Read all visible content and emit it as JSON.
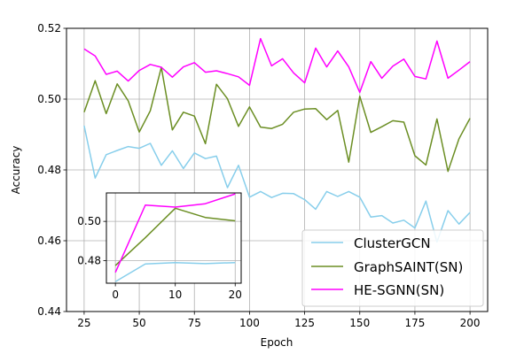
{
  "chart_data": [
    {
      "type": "line",
      "xlabel": "Epoch",
      "ylabel": "Accuracy",
      "xlim": [
        17,
        208
      ],
      "ylim": [
        0.44,
        0.52
      ],
      "xticks": [
        25,
        50,
        75,
        100,
        125,
        150,
        175,
        200
      ],
      "xtick_labels": [
        "25",
        "50",
        "75",
        "100",
        "125",
        "150",
        "175",
        "200"
      ],
      "yticks": [
        0.44,
        0.46,
        0.48,
        0.5,
        0.52
      ],
      "ytick_labels": [
        "0.44",
        "0.46",
        "0.48",
        "0.50",
        "0.52"
      ],
      "grid": true,
      "legend_position": "lower-right",
      "x": [
        25,
        30,
        35,
        40,
        45,
        50,
        55,
        60,
        65,
        70,
        75,
        80,
        85,
        90,
        95,
        100,
        105,
        110,
        115,
        120,
        125,
        130,
        135,
        140,
        145,
        150,
        155,
        160,
        165,
        170,
        175,
        180,
        185,
        190,
        195,
        200
      ],
      "series": [
        {
          "name": "ClusterGCN",
          "color": "#87ceeb",
          "values": [
            0.4925,
            0.4777,
            0.4843,
            0.4855,
            0.4866,
            0.4861,
            0.4875,
            0.4813,
            0.4854,
            0.4804,
            0.4848,
            0.4832,
            0.4839,
            0.475,
            0.4813,
            0.4723,
            0.4739,
            0.4722,
            0.4734,
            0.4733,
            0.4716,
            0.4689,
            0.4739,
            0.4725,
            0.4739,
            0.4723,
            0.4667,
            0.4671,
            0.465,
            0.4658,
            0.4636,
            0.4712,
            0.4596,
            0.4685,
            0.4647,
            0.468
          ]
        },
        {
          "name": "GraphSAINT(SN)",
          "color": "#6b8e23",
          "values": [
            0.4963,
            0.5052,
            0.4959,
            0.5043,
            0.4995,
            0.4907,
            0.4967,
            0.509,
            0.4913,
            0.4963,
            0.4952,
            0.4874,
            0.5042,
            0.5001,
            0.4923,
            0.4978,
            0.4921,
            0.4917,
            0.4929,
            0.4963,
            0.4972,
            0.4973,
            0.4942,
            0.4968,
            0.4822,
            0.5008,
            0.4906,
            0.4922,
            0.4939,
            0.4935,
            0.484,
            0.4814,
            0.4944,
            0.4796,
            0.4888,
            0.4946
          ]
        },
        {
          "name": "HE-SGNN(SN)",
          "color": "#ff00ff",
          "values": [
            0.5142,
            0.5122,
            0.507,
            0.5079,
            0.5051,
            0.5081,
            0.5098,
            0.509,
            0.5062,
            0.5091,
            0.5103,
            0.5076,
            0.508,
            0.5072,
            0.5063,
            0.5039,
            0.5171,
            0.5094,
            0.5114,
            0.5074,
            0.5046,
            0.5144,
            0.5091,
            0.5136,
            0.5091,
            0.5019,
            0.5106,
            0.5059,
            0.5093,
            0.5113,
            0.5064,
            0.5057,
            0.5164,
            0.5059,
            0.5082,
            0.5106
          ]
        }
      ]
    },
    {
      "type": "line",
      "xlabel": "",
      "ylabel": "",
      "xlim": [
        -1.5,
        21
      ],
      "ylim": [
        0.4685,
        0.5145
      ],
      "xticks": [
        0,
        10,
        20
      ],
      "xtick_labels": [
        "0",
        "10",
        "20"
      ],
      "yticks": [
        0.48,
        0.5
      ],
      "ytick_labels": [
        "0.48",
        "0.50"
      ],
      "grid": true,
      "x": [
        0,
        5,
        10,
        15,
        20
      ],
      "series": [
        {
          "name": "ClusterGCN",
          "color": "#87ceeb",
          "values": [
            0.4693,
            0.4783,
            0.479,
            0.4785,
            0.479
          ]
        },
        {
          "name": "GraphSAINT(SN)",
          "color": "#6b8e23",
          "values": [
            0.4775,
            0.4917,
            0.5067,
            0.502,
            0.5003
          ]
        },
        {
          "name": "HE-SGNN(SN)",
          "color": "#ff00ff",
          "values": [
            0.474,
            0.5083,
            0.5073,
            0.509,
            0.514
          ]
        }
      ]
    }
  ]
}
